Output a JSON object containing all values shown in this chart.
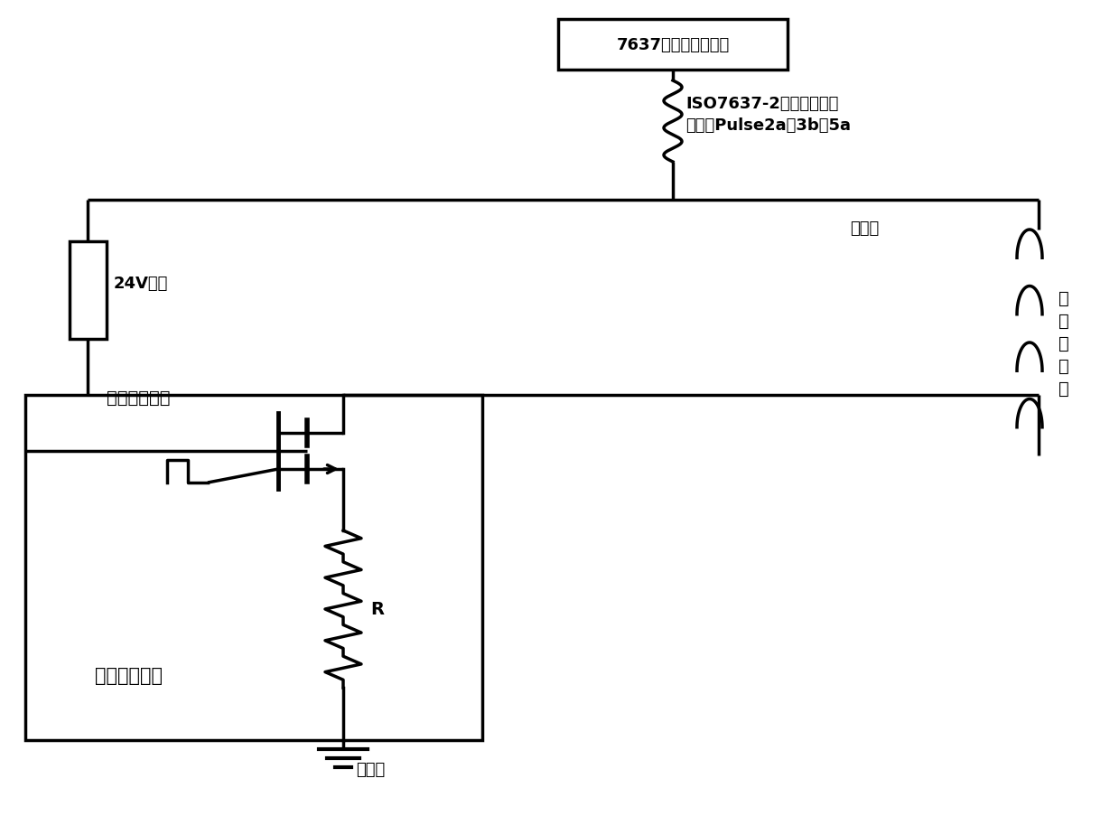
{
  "bg_color": "#ffffff",
  "lc": "#000000",
  "lw": 2.5,
  "fig_w": 12.39,
  "fig_h": 9.04,
  "dpi": 100,
  "text_gen": "7637干扰脉冲发生器",
  "text_iso": "ISO7637-2中电源线干扰\n脉冲：Pulse2a、3b、5a",
  "text_inj": "注入点",
  "text_24v": "24V电源",
  "text_ind": "大\n感\n性\n负\n载",
  "text_pulse": "脉冲控制信号",
  "text_ecm": "电子控制模块",
  "text_R": "R",
  "text_gnd": "公共地",
  "fs_main": 14,
  "fs_small": 13,
  "font": "SimHei"
}
